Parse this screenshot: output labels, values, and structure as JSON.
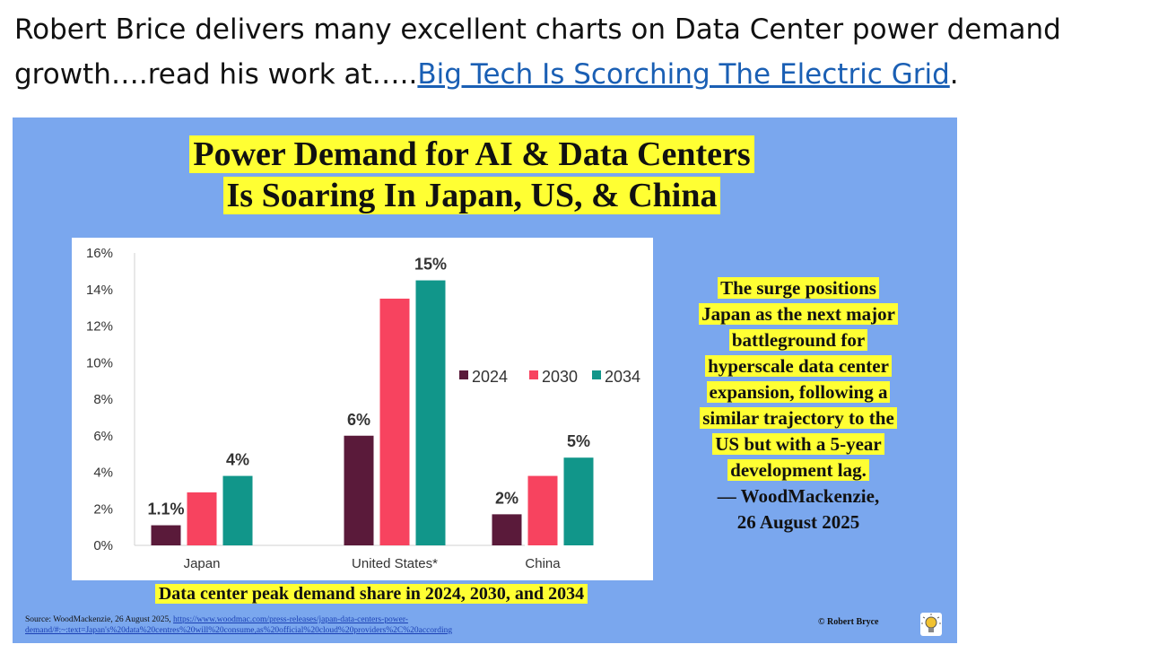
{
  "intro": {
    "text": "Robert Brice delivers many excellent charts on Data Center power demand growth….read his work at…..",
    "link_text": "Big Tech Is Scorching The Electric Grid",
    "trailing": "."
  },
  "slide": {
    "title_line1": "Power Demand for AI & Data Centers",
    "title_line2": "Is Soaring In Japan, US, & China",
    "quote_lines": [
      "The surge positions",
      "Japan as the next major",
      "battleground for",
      "hyperscale data center",
      "expansion, following a",
      "similar trajectory to the",
      "US but with a 5-year",
      "development lag."
    ],
    "attribution_line1": "— WoodMackenzie,",
    "attribution_line2": "26 August 2025",
    "source_prefix": "Source: WoodMackenzie, 26 August 2025, ",
    "source_url_line1": "https://www.woodmac.com/press-releases/japan-data-centers-power-",
    "source_url_line2": "demand/#:~:text=Japan's%20data%20centres%20will%20consume,as%20official%20cloud%20providers%2C%20according",
    "copyright": "© Robert Bryce",
    "bulb_color": "#f2c230"
  },
  "chart_data": {
    "type": "bar",
    "title": "",
    "xlabel": "Data center peak demand share in 2024, 2030, and 2034",
    "ylabel": "",
    "categories": [
      "Japan",
      "United States*",
      "China"
    ],
    "series": [
      {
        "name": "2024",
        "color": "#5a1a3a",
        "values": [
          1.1,
          6.0,
          1.7
        ]
      },
      {
        "name": "2030",
        "color": "#f7435f",
        "values": [
          2.9,
          13.5,
          3.8
        ]
      },
      {
        "name": "2034",
        "color": "#11968a",
        "values": [
          3.8,
          14.5,
          4.8
        ]
      }
    ],
    "data_labels": [
      {
        "text": "1.1%",
        "category": 0,
        "series": 0,
        "value": 1.1
      },
      {
        "text": "4%",
        "category": 0,
        "series": 2,
        "value": 3.8
      },
      {
        "text": "6%",
        "category": 1,
        "series": 0,
        "value": 6.0
      },
      {
        "text": "15%",
        "category": 1,
        "series": 2,
        "value": 14.5
      },
      {
        "text": "2%",
        "category": 2,
        "series": 0,
        "value": 1.7
      },
      {
        "text": "5%",
        "category": 2,
        "series": 2,
        "value": 4.8
      }
    ],
    "y_ticks": [
      "0%",
      "2%",
      "4%",
      "6%",
      "8%",
      "10%",
      "12%",
      "14%",
      "16%"
    ],
    "ylim": [
      0,
      16
    ],
    "grid": false,
    "legend_position": "right"
  }
}
